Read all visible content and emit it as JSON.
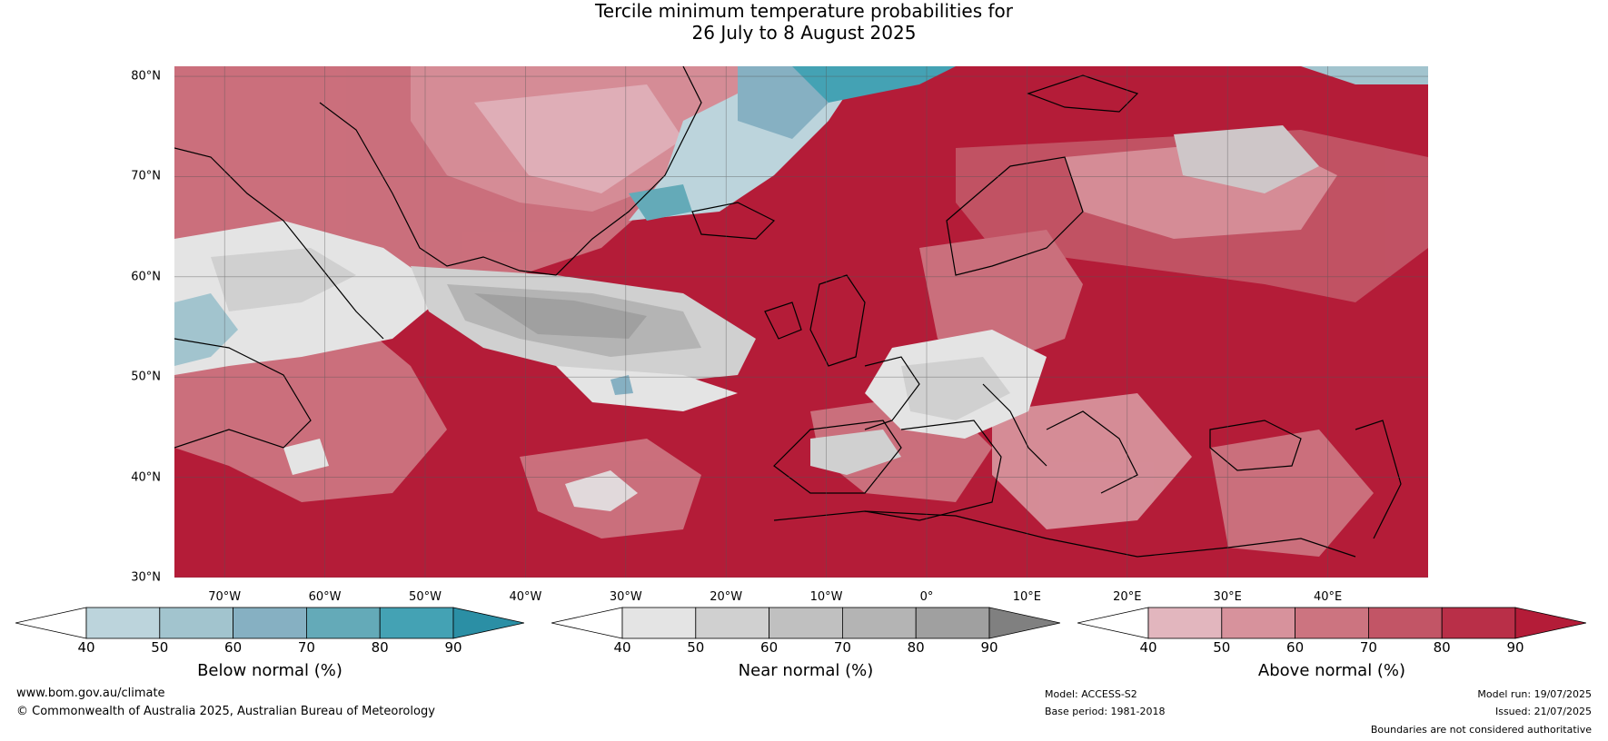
{
  "title": {
    "line1": "Tercile minimum temperature probabilities for",
    "line2": "26 July to 8 August 2025"
  },
  "map": {
    "latitude_labels": [
      "80°N",
      "70°N",
      "60°N",
      "50°N",
      "40°N",
      "30°N"
    ],
    "longitude_labels": [
      "70°W",
      "60°W",
      "50°W",
      "40°W",
      "30°W",
      "20°W",
      "10°W",
      "0°",
      "10°E",
      "20°E",
      "30°E",
      "40°E"
    ],
    "lat_range": [
      30,
      81
    ],
    "lon_range": [
      -75,
      50
    ]
  },
  "colorbars": [
    {
      "label": "Below normal (%)",
      "ticks": [
        "40",
        "50",
        "60",
        "70",
        "80",
        "90"
      ],
      "colors": [
        "#ffffff",
        "#bcd4dc",
        "#a2c4ce",
        "#86b0c2",
        "#64aab8",
        "#44a2b4",
        "#2b8fa5"
      ]
    },
    {
      "label": "Near normal (%)",
      "ticks": [
        "40",
        "50",
        "60",
        "70",
        "80",
        "90"
      ],
      "colors": [
        "#ffffff",
        "#e4e4e4",
        "#d0d0d0",
        "#c0c0c0",
        "#b4b4b4",
        "#a0a0a0",
        "#808080"
      ]
    },
    {
      "label": "Above normal (%)",
      "ticks": [
        "40",
        "50",
        "60",
        "70",
        "80",
        "90"
      ],
      "colors": [
        "#ffffff",
        "#e2b6be",
        "#d7929c",
        "#cc7480",
        "#c25566",
        "#b92f48",
        "#b41c38"
      ]
    }
  ],
  "footer": {
    "website": "www.bom.gov.au/climate",
    "copyright": "© Commonwealth of Australia 2025, Australian Bureau of Meteorology",
    "model": "Model: ACCESS-S2",
    "base_period": "Base period: 1981-2018",
    "model_run": "Model run: 19/07/2025",
    "issued": "Issued: 21/07/2025",
    "disclaimer": "Boundaries are not considered authoritative"
  }
}
